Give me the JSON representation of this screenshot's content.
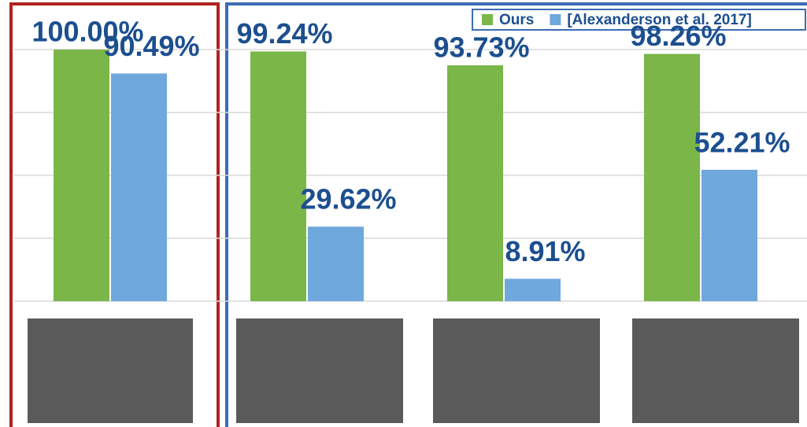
{
  "chart_data": {
    "type": "bar",
    "categories": [
      null,
      null,
      null,
      null
    ],
    "series": [
      {
        "name": "Ours",
        "color": "#7ab648",
        "values": [
          100.0,
          99.24,
          93.73,
          98.26
        ],
        "value_labels": [
          "100.00%",
          "99.24%",
          "93.73%",
          "98.26%"
        ]
      },
      {
        "name": "[Alexanderson et al. 2017]",
        "color": "#6fa8dc",
        "values": [
          90.49,
          29.62,
          8.91,
          52.21
        ],
        "value_labels": [
          "90.49%",
          "29.62%",
          "8.91%",
          "52.21%"
        ]
      }
    ],
    "ylim": [
      0,
      100
    ],
    "yticks": [
      0,
      25,
      50,
      75,
      100
    ],
    "grid": true,
    "legend": "top-right"
  }
}
